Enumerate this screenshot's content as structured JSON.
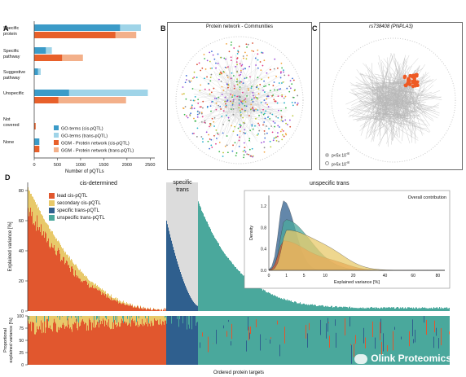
{
  "panels": {
    "A": {
      "letter": "A",
      "categories": [
        "Specific\nprotein",
        "Specific\npathway",
        "Suggestive\npathway",
        "Unspecific",
        "Not\ncovered",
        "None"
      ],
      "xlabel": "Number of pQTLs",
      "xticks": [
        "0",
        "500",
        "1000",
        "1500",
        "2000",
        "2500"
      ],
      "legend": [
        {
          "label": "GO-terms (cis-pQTL)",
          "color": "#3b9bc8"
        },
        {
          "label": "GO-terms (trans-pQTL)",
          "color": "#9fd4e8"
        },
        {
          "label": "GGM - Protein network (cis-pQTL)",
          "color": "#e8602a"
        },
        {
          "label": "GGM - Protein network (trans-pQTL)",
          "color": "#f3b08a"
        }
      ]
    },
    "B": {
      "letter": "B",
      "title": "Protein network - Communities"
    },
    "C": {
      "letter": "C",
      "title": "rs738408 (PNPLA3)",
      "legend": [
        "p<5x 10",
        "p>5x 10"
      ],
      "exp": "-8"
    },
    "D": {
      "letter": "D",
      "section_labels": [
        "cis-determined",
        "specific\ntrans",
        "unspecific trans"
      ],
      "legend": [
        {
          "label": "lead cis-pQTL",
          "color": "#e1572e"
        },
        {
          "label": "secondary cis-pQTL",
          "color": "#e8c96a"
        },
        {
          "label": "specific trans-pQTL",
          "color": "#2f5f8e"
        },
        {
          "label": "unspecific trans-pQTL",
          "color": "#4aa89c"
        }
      ],
      "ylabel_top": "Explained variance [%]",
      "ylabel_bottom": "Proportional\nexplained variance [%]",
      "yticks_top": [
        "0",
        "20",
        "40",
        "60",
        "80"
      ],
      "yticks_bottom": [
        "0",
        "25",
        "50",
        "75",
        "100"
      ],
      "xlabel": "Ordered protein targets",
      "inset": {
        "title": "Overall contribution",
        "ylabel": "Density",
        "xlabel": "Explained variance [%]",
        "xticks": [
          "0",
          "1",
          "5",
          "10",
          "20",
          "40",
          "60",
          "80"
        ],
        "yticks": [
          "0.0",
          "0.4",
          "0.8",
          "1.2"
        ]
      }
    }
  },
  "watermark": "Olink Proteomics",
  "chart_data": [
    {
      "type": "bar",
      "title": "",
      "xlabel": "Number of pQTLs",
      "ylabel": "",
      "xlim": [
        0,
        2600
      ],
      "categories": [
        "Specific protein",
        "Specific pathway",
        "Suggestive pathway",
        "Unspecific",
        "Not covered",
        "None"
      ],
      "series": [
        {
          "name": "GO-terms (cis-pQTL)",
          "values": [
            1850,
            250,
            80,
            750,
            0,
            110
          ]
        },
        {
          "name": "GO-terms (trans-pQTL)",
          "values": [
            2300,
            380,
            140,
            2450,
            0,
            110
          ]
        },
        {
          "name": "GGM - Protein network (cis-pQTL)",
          "values": [
            1750,
            600,
            0,
            520,
            30,
            110
          ]
        },
        {
          "name": "GGM - Protein network (trans-pQTL)",
          "values": [
            2200,
            1050,
            0,
            1980,
            30,
            110
          ]
        }
      ]
    },
    {
      "type": "area",
      "title": "",
      "xlabel": "Explained variance [%]",
      "ylabel": "Density",
      "series": [
        {
          "name": "lead cis-pQTL",
          "peak_x": 0.6,
          "peak_y": 0.55
        },
        {
          "name": "secondary cis-pQTL",
          "peak_x": 1.0,
          "peak_y": 0.75
        },
        {
          "name": "specific trans-pQTL",
          "peak_x": 0.6,
          "peak_y": 1.3
        },
        {
          "name": "unspecific trans-pQTL",
          "peak_x": 0.8,
          "peak_y": 0.95
        }
      ]
    }
  ],
  "colors": {
    "cis_lead": "#e1572e",
    "cis_secondary": "#e8c96a",
    "trans_specific": "#2f5f8e",
    "trans_unspecific": "#4aa89c",
    "go_cis": "#3b9bc8",
    "go_trans": "#9fd4e8",
    "ggm_cis": "#e8602a",
    "ggm_trans": "#f3b08a"
  }
}
